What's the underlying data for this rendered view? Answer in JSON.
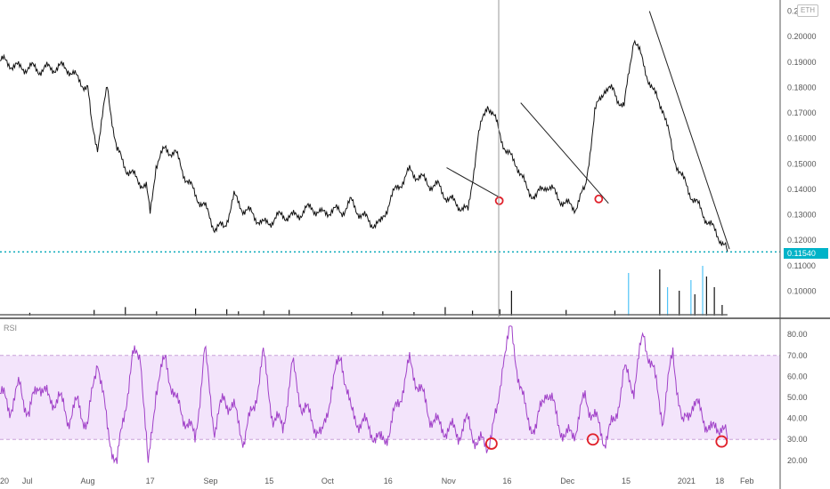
{
  "symbol": "ETH",
  "indicator_label": "RSI",
  "last_price_label": "0.11540",
  "colors": {
    "price_line": "#111111",
    "trendline": "#222222",
    "current_price": "#00a6b8",
    "rsi_line": "#a040c8",
    "rsi_band_fill": "#f3e4fb",
    "rsi_band_border": "#c8a0d8",
    "volume_up": "#4fc3f7",
    "volume_down": "#111111",
    "annotation": "#e0202a",
    "crosshair": "#9a9a9a"
  },
  "chart_data": [
    {
      "type": "line",
      "name": "price",
      "yaxis_ticks": [
        "0.21000",
        "0.20000",
        "0.19000",
        "0.18000",
        "0.17000",
        "0.16000",
        "0.15000",
        "0.14000",
        "0.13000",
        "0.12000",
        "0.11000",
        "0.10000"
      ],
      "yaxis_tick_values": [
        0.21,
        0.2,
        0.19,
        0.18,
        0.17,
        0.16,
        0.15,
        0.14,
        0.13,
        0.12,
        0.11,
        0.1
      ],
      "ylim": [
        0.09,
        0.213
      ],
      "x_ticks": [
        "Jul",
        "Aug",
        "17",
        "Sep",
        "15",
        "Oct",
        "16",
        "Nov",
        "16",
        "Dec",
        "15",
        "2021",
        "18",
        "Feb"
      ],
      "x_tick_days": [
        14,
        45,
        77,
        108,
        138,
        168,
        199,
        230,
        260,
        291,
        321,
        352,
        369,
        383
      ],
      "xlim_days": [
        0,
        400
      ],
      "current_price": 0.1154,
      "x_days": [
        0,
        5,
        10,
        15,
        20,
        25,
        30,
        35,
        40,
        45,
        47,
        50,
        55,
        60,
        65,
        70,
        75,
        77,
        80,
        85,
        90,
        95,
        100,
        105,
        110,
        115,
        120,
        125,
        130,
        135,
        140,
        145,
        150,
        155,
        160,
        165,
        170,
        175,
        180,
        185,
        190,
        195,
        200,
        205,
        210,
        215,
        220,
        225,
        230,
        235,
        240,
        245,
        250,
        255,
        260,
        265,
        270,
        275,
        280,
        285,
        290,
        295,
        300,
        305,
        310,
        315,
        320,
        325,
        330,
        335,
        340,
        345,
        350,
        355,
        360,
        365,
        370,
        373
      ],
      "values": [
        0.1905,
        0.1895,
        0.1875,
        0.188,
        0.187,
        0.1875,
        0.188,
        0.1875,
        0.183,
        0.18,
        0.165,
        0.157,
        0.18,
        0.155,
        0.148,
        0.144,
        0.141,
        0.13,
        0.15,
        0.156,
        0.154,
        0.145,
        0.138,
        0.133,
        0.125,
        0.125,
        0.137,
        0.132,
        0.13,
        0.126,
        0.128,
        0.13,
        0.129,
        0.131,
        0.133,
        0.13,
        0.132,
        0.131,
        0.135,
        0.13,
        0.127,
        0.126,
        0.136,
        0.142,
        0.147,
        0.145,
        0.142,
        0.141,
        0.136,
        0.134,
        0.131,
        0.16,
        0.174,
        0.165,
        0.154,
        0.15,
        0.14,
        0.137,
        0.142,
        0.138,
        0.134,
        0.133,
        0.14,
        0.17,
        0.18,
        0.178,
        0.172,
        0.2,
        0.189,
        0.178,
        0.172,
        0.154,
        0.144,
        0.137,
        0.131,
        0.125,
        0.12,
        0.1154
      ],
      "trendlines": [
        {
          "x1": 229,
          "y1": 0.1485,
          "x2": 258,
          "y2": 0.136
        },
        {
          "x1": 267,
          "y1": 0.174,
          "x2": 312,
          "y2": 0.1345
        },
        {
          "x1": 333,
          "y1": 0.21,
          "x2": 374,
          "y2": 0.1165
        }
      ],
      "annotations": [
        {
          "x": 256,
          "y": 0.1355
        },
        {
          "x": 307,
          "y": 0.1362
        }
      ],
      "volume": {
        "x_days": [
          15,
          48,
          64,
          80,
          100,
          116,
          122,
          135,
          148,
          180,
          196,
          212,
          228,
          242,
          256,
          262,
          290,
          315,
          322,
          338,
          342,
          348,
          354,
          356,
          360,
          362,
          366,
          370
        ],
        "values": [
          0.4,
          0.8,
          1.2,
          0.6,
          1.0,
          0.9,
          0.6,
          0.7,
          0.8,
          0.5,
          0.6,
          0.5,
          1.2,
          0.7,
          0.9,
          3.5,
          0.8,
          0.7,
          6.0,
          6.5,
          4.0,
          3.5,
          5.0,
          3.0,
          7.0,
          5.5,
          4.0,
          1.5
        ],
        "up": [
          false,
          false,
          false,
          false,
          false,
          false,
          false,
          false,
          false,
          false,
          false,
          false,
          false,
          false,
          false,
          false,
          false,
          false,
          true,
          false,
          true,
          false,
          true,
          false,
          true,
          false,
          false,
          false
        ]
      }
    },
    {
      "type": "line",
      "name": "RSI",
      "yaxis_ticks": [
        "80.00",
        "70.00",
        "60.00",
        "50.00",
        "40.00",
        "30.00",
        "20.00"
      ],
      "yaxis_tick_values": [
        80,
        70,
        60,
        50,
        40,
        30,
        20
      ],
      "ylim": [
        14,
        86
      ],
      "band": [
        30,
        70
      ],
      "x_days": [
        0,
        5,
        10,
        15,
        20,
        25,
        30,
        35,
        40,
        45,
        50,
        55,
        60,
        64,
        68,
        72,
        76,
        80,
        85,
        90,
        95,
        100,
        105,
        110,
        115,
        120,
        125,
        130,
        135,
        140,
        145,
        150,
        155,
        160,
        165,
        170,
        175,
        180,
        185,
        190,
        195,
        200,
        205,
        210,
        215,
        220,
        225,
        230,
        235,
        240,
        245,
        250,
        255,
        258,
        262,
        266,
        270,
        275,
        280,
        285,
        290,
        295,
        300,
        305,
        310,
        315,
        320,
        325,
        330,
        335,
        340,
        345,
        350,
        355,
        360,
        365,
        370,
        373
      ],
      "values": [
        52,
        45,
        55,
        42,
        58,
        48,
        50,
        40,
        47,
        36,
        70,
        35,
        18,
        45,
        68,
        72,
        15,
        55,
        68,
        48,
        40,
        30,
        72,
        35,
        50,
        44,
        30,
        45,
        70,
        40,
        36,
        65,
        45,
        40,
        30,
        55,
        70,
        42,
        38,
        35,
        28,
        35,
        50,
        66,
        55,
        42,
        36,
        35,
        33,
        38,
        28,
        28,
        42,
        70,
        82,
        60,
        40,
        35,
        55,
        42,
        30,
        35,
        50,
        40,
        30,
        38,
        62,
        55,
        80,
        62,
        40,
        72,
        35,
        48,
        42,
        33,
        38,
        30
      ],
      "annotations": [
        {
          "x": 252,
          "y": 28
        },
        {
          "x": 304,
          "y": 30
        },
        {
          "x": 370,
          "y": 29
        }
      ]
    }
  ]
}
